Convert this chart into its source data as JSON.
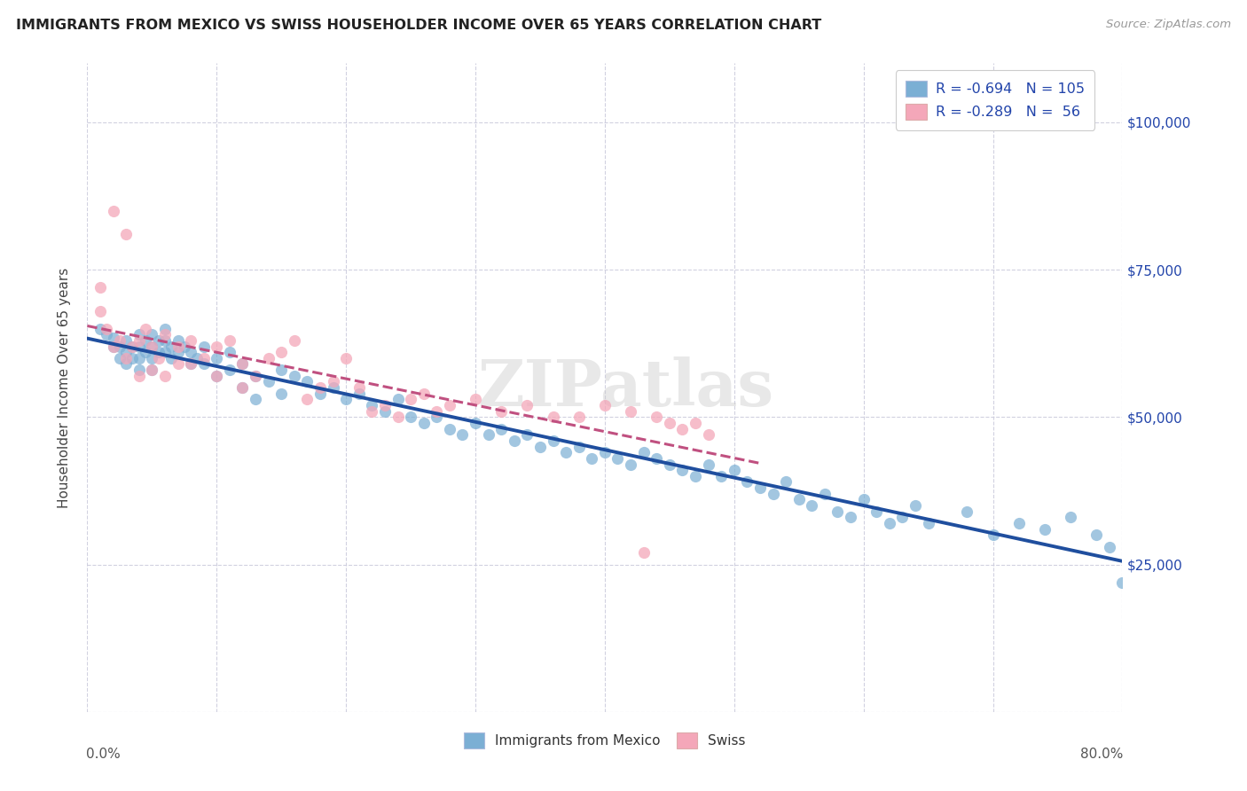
{
  "title": "IMMIGRANTS FROM MEXICO VS SWISS HOUSEHOLDER INCOME OVER 65 YEARS CORRELATION CHART",
  "source": "Source: ZipAtlas.com",
  "ylabel": "Householder Income Over 65 years",
  "y_ticks": [
    0,
    25000,
    50000,
    75000,
    100000
  ],
  "y_tick_labels": [
    "",
    "$25,000",
    "$50,000",
    "$75,000",
    "$100,000"
  ],
  "xlim": [
    0.0,
    0.8
  ],
  "ylim": [
    0,
    110000
  ],
  "legend_r1": "R = -0.694",
  "legend_n1": "N = 105",
  "legend_r2": "R = -0.289",
  "legend_n2": "N =  56",
  "blue_color": "#7BAFD4",
  "pink_color": "#F4A7B9",
  "blue_line_color": "#1F4E9E",
  "pink_line_color": "#C05080",
  "label_color": "#2244AA",
  "watermark": "ZIPatlas",
  "blue_scatter_x": [
    0.01,
    0.015,
    0.02,
    0.02,
    0.025,
    0.025,
    0.03,
    0.03,
    0.03,
    0.035,
    0.035,
    0.04,
    0.04,
    0.04,
    0.04,
    0.045,
    0.045,
    0.05,
    0.05,
    0.05,
    0.05,
    0.055,
    0.055,
    0.06,
    0.06,
    0.06,
    0.065,
    0.065,
    0.07,
    0.07,
    0.075,
    0.08,
    0.08,
    0.085,
    0.09,
    0.09,
    0.1,
    0.1,
    0.11,
    0.11,
    0.12,
    0.12,
    0.13,
    0.13,
    0.14,
    0.15,
    0.15,
    0.16,
    0.17,
    0.18,
    0.19,
    0.2,
    0.21,
    0.22,
    0.23,
    0.24,
    0.25,
    0.26,
    0.27,
    0.28,
    0.29,
    0.3,
    0.31,
    0.32,
    0.33,
    0.34,
    0.35,
    0.36,
    0.37,
    0.38,
    0.39,
    0.4,
    0.41,
    0.42,
    0.43,
    0.44,
    0.45,
    0.46,
    0.47,
    0.48,
    0.49,
    0.5,
    0.51,
    0.52,
    0.53,
    0.54,
    0.55,
    0.56,
    0.57,
    0.58,
    0.59,
    0.6,
    0.61,
    0.62,
    0.63,
    0.64,
    0.65,
    0.68,
    0.7,
    0.72,
    0.74,
    0.76,
    0.78,
    0.79,
    0.8
  ],
  "blue_scatter_y": [
    65000,
    64000,
    63500,
    62000,
    62000,
    60000,
    63000,
    61000,
    59000,
    62000,
    60000,
    64000,
    62000,
    60000,
    58000,
    63000,
    61000,
    64000,
    62000,
    60000,
    58000,
    63000,
    61000,
    65000,
    63000,
    61000,
    62000,
    60000,
    63000,
    61000,
    62000,
    61000,
    59000,
    60000,
    62000,
    59000,
    60000,
    57000,
    61000,
    58000,
    59000,
    55000,
    57000,
    53000,
    56000,
    58000,
    54000,
    57000,
    56000,
    54000,
    55000,
    53000,
    54000,
    52000,
    51000,
    53000,
    50000,
    49000,
    50000,
    48000,
    47000,
    49000,
    47000,
    48000,
    46000,
    47000,
    45000,
    46000,
    44000,
    45000,
    43000,
    44000,
    43000,
    42000,
    44000,
    43000,
    42000,
    41000,
    40000,
    42000,
    40000,
    41000,
    39000,
    38000,
    37000,
    39000,
    36000,
    35000,
    37000,
    34000,
    33000,
    36000,
    34000,
    32000,
    33000,
    35000,
    32000,
    34000,
    30000,
    32000,
    31000,
    33000,
    30000,
    28000,
    22000
  ],
  "pink_scatter_x": [
    0.01,
    0.01,
    0.015,
    0.02,
    0.02,
    0.025,
    0.03,
    0.03,
    0.035,
    0.04,
    0.04,
    0.045,
    0.05,
    0.05,
    0.055,
    0.06,
    0.06,
    0.07,
    0.07,
    0.08,
    0.08,
    0.09,
    0.1,
    0.1,
    0.11,
    0.12,
    0.12,
    0.13,
    0.14,
    0.15,
    0.16,
    0.17,
    0.18,
    0.19,
    0.2,
    0.21,
    0.22,
    0.23,
    0.24,
    0.25,
    0.26,
    0.27,
    0.28,
    0.3,
    0.32,
    0.34,
    0.36,
    0.38,
    0.4,
    0.42,
    0.43,
    0.44,
    0.45,
    0.46,
    0.47,
    0.48
  ],
  "pink_scatter_y": [
    72000,
    68000,
    65000,
    85000,
    62000,
    63000,
    81000,
    60000,
    62000,
    63000,
    57000,
    65000,
    62000,
    58000,
    60000,
    64000,
    57000,
    62000,
    59000,
    63000,
    59000,
    60000,
    62000,
    57000,
    63000,
    59000,
    55000,
    57000,
    60000,
    61000,
    63000,
    53000,
    55000,
    56000,
    60000,
    55000,
    51000,
    52000,
    50000,
    53000,
    54000,
    51000,
    52000,
    53000,
    51000,
    52000,
    50000,
    50000,
    52000,
    51000,
    27000,
    50000,
    49000,
    48000,
    49000,
    47000
  ]
}
